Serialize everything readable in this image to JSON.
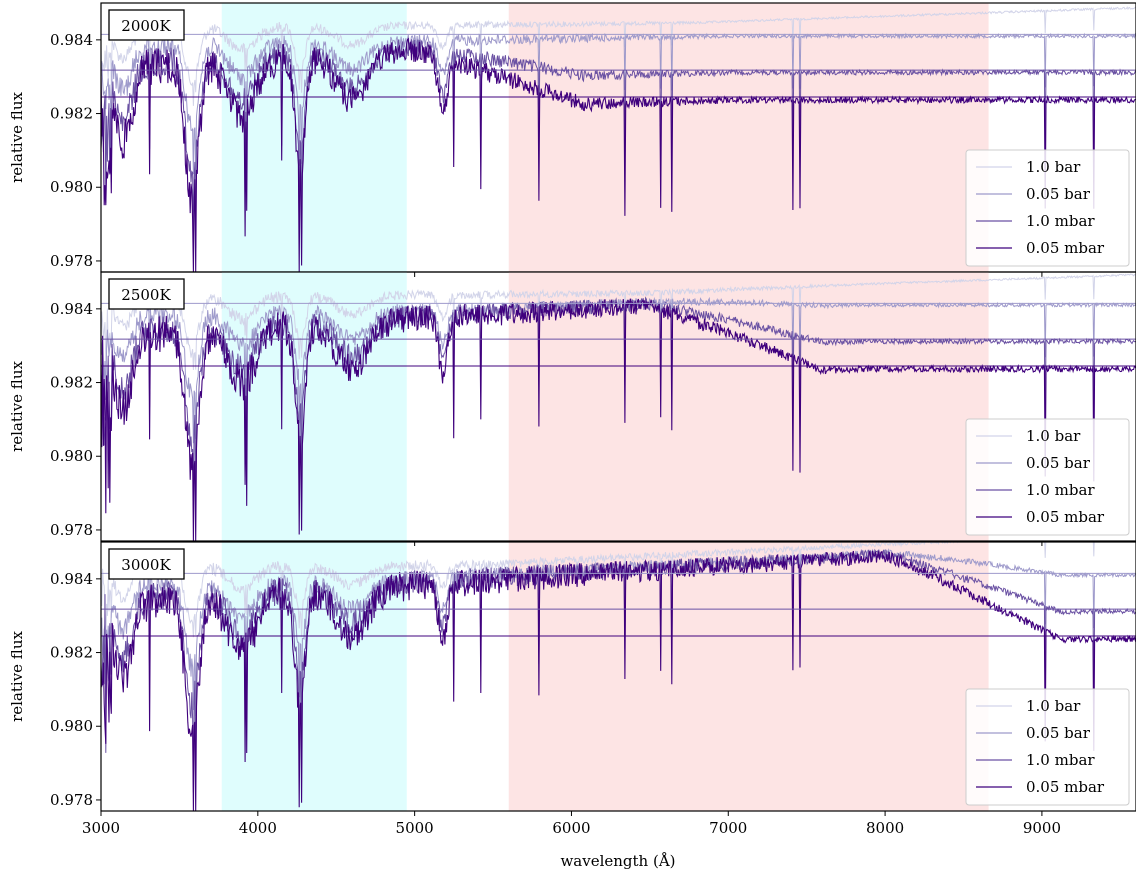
{
  "figure": {
    "ylabel": "relative flux",
    "xlabel": "wavelength (Å)"
  },
  "chart_data": {
    "type": "line",
    "x_range": [
      3000,
      9600
    ],
    "xticks": [
      "3000",
      "4000",
      "5000",
      "6000",
      "7000",
      "8000",
      "9000"
    ],
    "ylim": [
      0.9777,
      0.985
    ],
    "yticks": [
      "0.978",
      "0.980",
      "0.982",
      "0.984"
    ],
    "shaded_regions": [
      {
        "x0": 3770,
        "x1": 4950,
        "color": "#dffdfd"
      },
      {
        "x0": 5600,
        "x1": 8660,
        "color": "#fde4e4"
      }
    ],
    "legend_position": "lower right",
    "series_styles": [
      {
        "name": "1.0 bar",
        "color": "#d2d4e9",
        "baseline": 0.9845,
        "slope": 0.0003
      },
      {
        "name": "0.05 bar",
        "color": "#9e9acb",
        "baseline": 0.98415,
        "slope": 0.0
      },
      {
        "name": "1.0 mbar",
        "color": "#6a51a3",
        "baseline": 0.98318,
        "slope": 0.0
      },
      {
        "name": "0.05 mbar",
        "color": "#3f007d",
        "baseline": 0.98245,
        "slope": 0.0
      }
    ],
    "panels": [
      {
        "label": "2000K",
        "continuum_top": 0.98375,
        "continuum_end": 0.9847
      },
      {
        "label": "2500K",
        "continuum_top": 0.9838,
        "continuum_end": 0.98475
      },
      {
        "label": "3000K",
        "continuum_top": 0.98385,
        "continuum_end": 0.9851
      }
    ]
  }
}
